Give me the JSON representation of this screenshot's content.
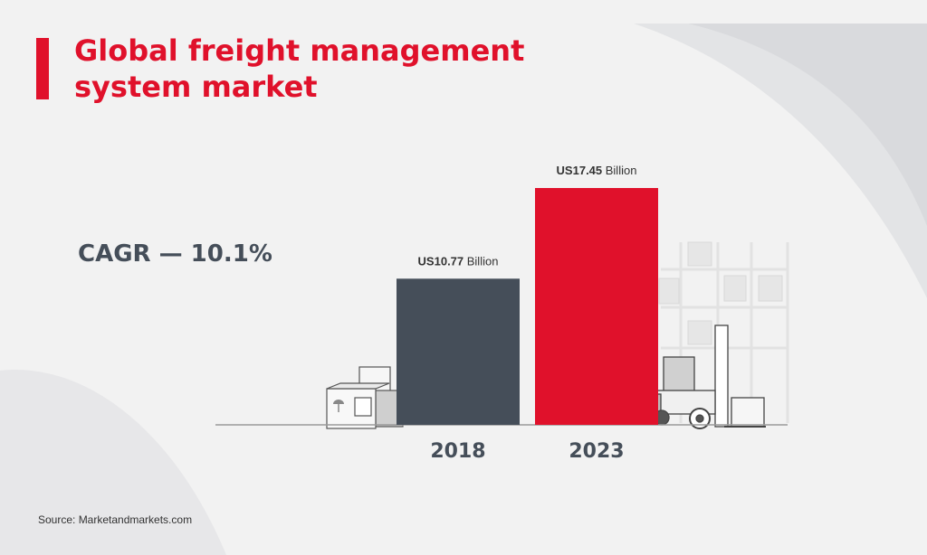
{
  "header": {
    "title_line1": "Global freight management",
    "title_line2": "system market"
  },
  "cagr": "CAGR — 10.1%",
  "source": "Source: Marketandmarkets.com",
  "colors": {
    "accent": "#e0112b",
    "bar_2018": "#454e59",
    "bar_2023": "#e0112b",
    "text_dark": "#454e59"
  },
  "chart_data": {
    "type": "bar",
    "title": "Global freight management system market",
    "categories": [
      "2018",
      "2023"
    ],
    "values": [
      10.77,
      17.45
    ],
    "unit": "US$ Billion",
    "value_labels": [
      {
        "bold": "US10.77",
        "rest": " Billion"
      },
      {
        "bold": "US17.45",
        "rest": " Billion"
      }
    ],
    "bar_colors": [
      "#454e59",
      "#e0112b"
    ],
    "ylim": [
      0,
      17.45
    ],
    "grid": false,
    "legend": "none"
  }
}
